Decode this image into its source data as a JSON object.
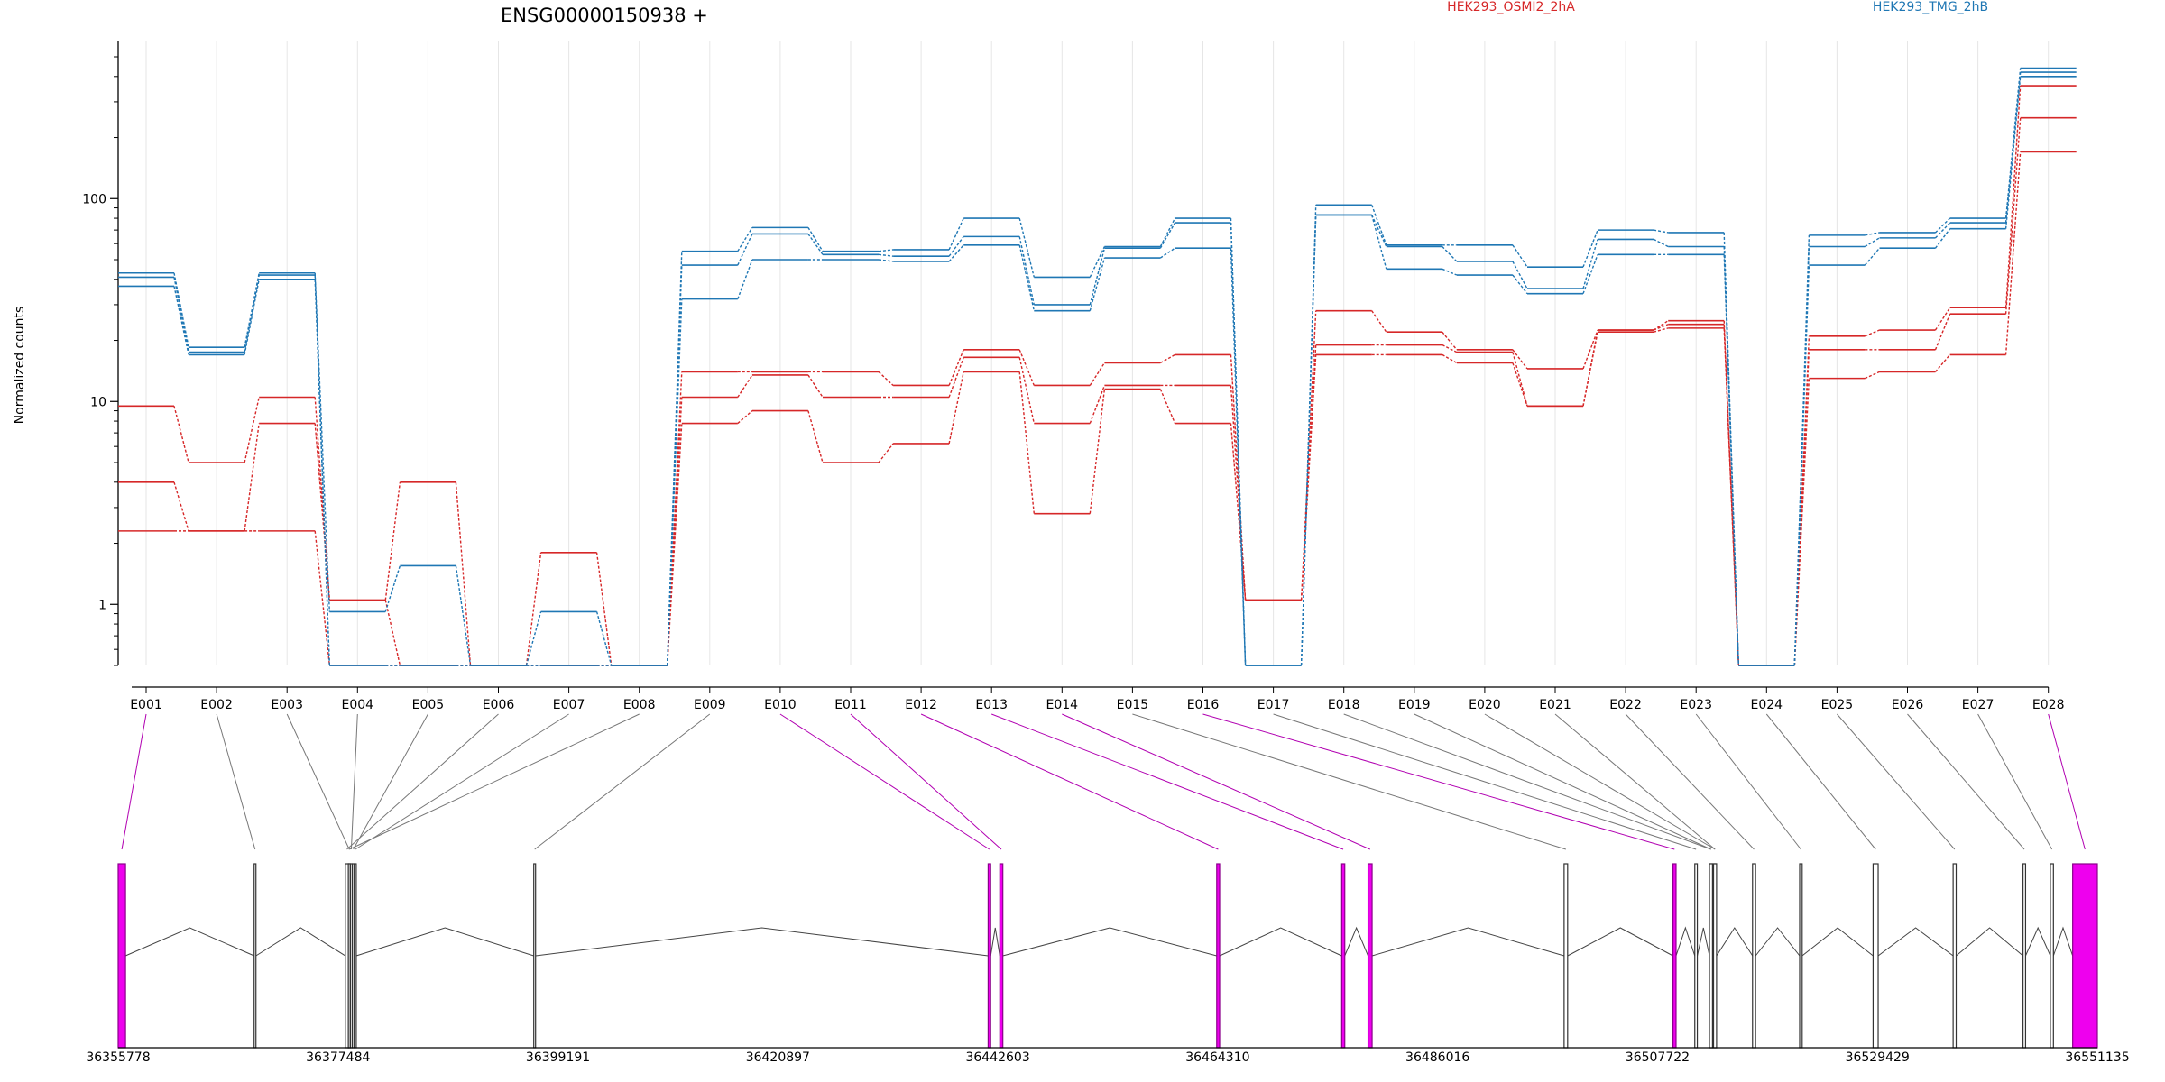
{
  "chart_data": {
    "type": "line",
    "title": "ENSG00000150938 +",
    "ylabel": "Normalized counts",
    "xlabel": "",
    "yscale": "log",
    "ylim": [
      0.5,
      500
    ],
    "yticks": [
      {
        "value": 1,
        "label": "1"
      },
      {
        "value": 10,
        "label": "10"
      },
      {
        "value": 100,
        "label": "100"
      }
    ],
    "grid": "vertical",
    "colors": {
      "HEK293_OSMI2_2hA": "#d62728",
      "HEK293_TMG_2hB": "#1f77b4",
      "exon_highlight": "#ee00ee"
    },
    "categories": [
      "E001",
      "E002",
      "E003",
      "E004",
      "E005",
      "E006",
      "E007",
      "E008",
      "E009",
      "E010",
      "E011",
      "E012",
      "E013",
      "E014",
      "E015",
      "E016",
      "E017",
      "E018",
      "E019",
      "E020",
      "E021",
      "E022",
      "E023",
      "E024",
      "E025",
      "E026",
      "E027",
      "E028"
    ],
    "groups": [
      {
        "label": "HEK293_OSMI2_2hA",
        "color": "#d62728"
      },
      {
        "label": "HEK293_TMG_2hB",
        "color": "#1f77b4"
      }
    ],
    "series": [
      {
        "group": "HEK293_OSMI2_2hA",
        "color": "#d62728",
        "values": [
          9.5,
          5.0,
          10.5,
          1.05,
          4.0,
          0.5,
          1.8,
          0.5,
          14,
          14,
          14,
          12,
          18,
          12,
          15.5,
          17,
          1.05,
          28,
          22,
          18,
          14.5,
          22.5,
          25,
          0.5,
          21,
          22.5,
          29,
          360
        ]
      },
      {
        "group": "HEK293_OSMI2_2hA",
        "color": "#d62728",
        "values": [
          4.0,
          2.3,
          7.8,
          1.05,
          0.5,
          0.5,
          0.5,
          0.5,
          10.5,
          13.5,
          10.5,
          10.5,
          16.5,
          7.8,
          12,
          12,
          1.05,
          19,
          19,
          17.5,
          9.5,
          22.5,
          24,
          0.5,
          18,
          18,
          27,
          250
        ]
      },
      {
        "group": "HEK293_OSMI2_2hA",
        "color": "#d62728",
        "values": [
          2.3,
          2.3,
          2.3,
          0.5,
          0.5,
          0.5,
          0.5,
          0.5,
          7.8,
          9.0,
          5.0,
          6.2,
          14,
          2.8,
          11.5,
          7.8,
          1.05,
          17,
          17,
          15.5,
          9.5,
          22,
          23,
          0.5,
          13,
          14,
          17,
          170
        ]
      },
      {
        "group": "HEK293_TMG_2hB",
        "color": "#1f77b4",
        "values": [
          43,
          18.5,
          43,
          0.92,
          1.55,
          0.5,
          0.92,
          0.5,
          55,
          72,
          55,
          56,
          80,
          41,
          58,
          80,
          0.5,
          93,
          59,
          59,
          46,
          70,
          68,
          0.5,
          66,
          68,
          80,
          440
        ]
      },
      {
        "group": "HEK293_TMG_2hB",
        "color": "#1f77b4",
        "values": [
          41,
          17.5,
          42,
          0.5,
          0.5,
          0.5,
          0.5,
          0.5,
          47,
          67,
          53,
          52,
          65,
          30,
          57,
          76,
          0.5,
          83,
          58,
          49,
          36,
          63,
          58,
          0.5,
          58,
          64,
          76,
          420
        ]
      },
      {
        "group": "HEK293_TMG_2hB",
        "color": "#1f77b4",
        "values": [
          37,
          17,
          40,
          0.5,
          0.5,
          0.5,
          0.5,
          0.5,
          32,
          50,
          50,
          49,
          59,
          28,
          51,
          57,
          0.5,
          83,
          45,
          42,
          34,
          53,
          53,
          0.5,
          47,
          57,
          71,
          400
        ]
      }
    ],
    "genomic_ticks": [
      "36355778",
      "36377484",
      "36399191",
      "36420897",
      "36442603",
      "36464310",
      "36486016",
      "36507722",
      "36529429",
      "36551135"
    ],
    "genomic_range": [
      36355778,
      36551135
    ],
    "exon_positions": [
      {
        "start": 36355778,
        "end": 36356500,
        "highlighted": true
      },
      {
        "start": 36369200,
        "end": 36369350,
        "highlighted": false
      },
      {
        "start": 36378500,
        "end": 36378650,
        "highlighted": false
      },
      {
        "start": 36378700,
        "end": 36378850,
        "highlighted": false
      },
      {
        "start": 36378900,
        "end": 36379050,
        "highlighted": false
      },
      {
        "start": 36378200,
        "end": 36378500,
        "highlighted": false
      },
      {
        "start": 36379100,
        "end": 36379250,
        "highlighted": false
      },
      {
        "start": 36378500,
        "end": 36378650,
        "highlighted": false
      },
      {
        "start": 36396800,
        "end": 36396950,
        "highlighted": false
      },
      {
        "start": 36441650,
        "end": 36441900,
        "highlighted": true
      },
      {
        "start": 36442800,
        "end": 36443100,
        "highlighted": true
      },
      {
        "start": 36464210,
        "end": 36464500,
        "highlighted": true
      },
      {
        "start": 36476550,
        "end": 36476850,
        "highlighted": true
      },
      {
        "start": 36479150,
        "end": 36479550,
        "highlighted": true
      },
      {
        "start": 36498500,
        "end": 36498850,
        "highlighted": false
      },
      {
        "start": 36509250,
        "end": 36509550,
        "highlighted": true
      },
      {
        "start": 36511400,
        "end": 36511650,
        "highlighted": false
      },
      {
        "start": 36512850,
        "end": 36513150,
        "highlighted": false
      },
      {
        "start": 36512850,
        "end": 36513150,
        "highlighted": false
      },
      {
        "start": 36513250,
        "end": 36513550,
        "highlighted": false
      },
      {
        "start": 36513250,
        "end": 36513550,
        "highlighted": false
      },
      {
        "start": 36517100,
        "end": 36517400,
        "highlighted": false
      },
      {
        "start": 36521750,
        "end": 36522000,
        "highlighted": false
      },
      {
        "start": 36529000,
        "end": 36529500,
        "highlighted": false
      },
      {
        "start": 36536900,
        "end": 36537200,
        "highlighted": false
      },
      {
        "start": 36543800,
        "end": 36544050,
        "highlighted": false
      },
      {
        "start": 36546500,
        "end": 36546800,
        "highlighted": false
      },
      {
        "start": 36548700,
        "end": 36551135,
        "highlighted": true
      }
    ]
  }
}
